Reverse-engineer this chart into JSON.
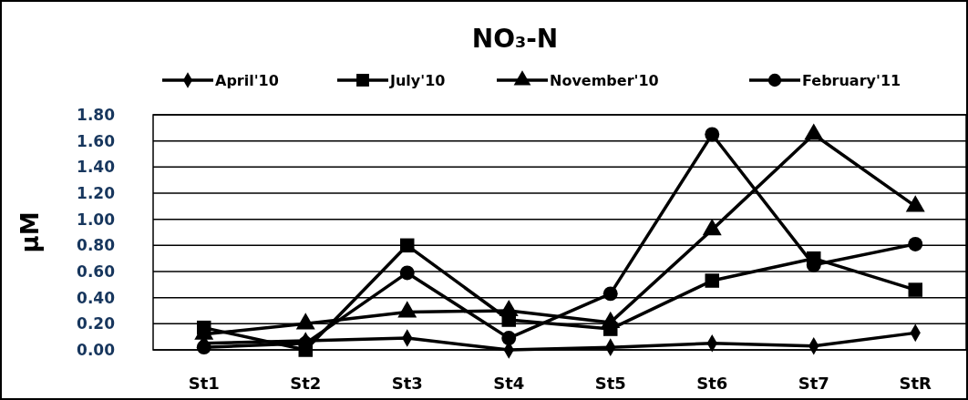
{
  "chart_data": {
    "type": "line",
    "title": "NO₃-N",
    "ylabel": "μM",
    "categories": [
      "St1",
      "St2",
      "St3",
      "St4",
      "St5",
      "St6",
      "St7",
      "StR"
    ],
    "series": [
      {
        "name": "April'10",
        "color": "#000000",
        "marker": "diamond",
        "values": [
          0.05,
          0.07,
          0.09,
          0.0,
          0.02,
          0.05,
          0.03,
          0.13
        ]
      },
      {
        "name": "July'10",
        "color": "#000000",
        "marker": "square",
        "values": [
          0.17,
          0.0,
          0.8,
          0.23,
          0.16,
          0.53,
          0.7,
          0.46
        ]
      },
      {
        "name": "November'10",
        "color": "#000000",
        "marker": "triangle",
        "values": [
          0.12,
          0.2,
          0.29,
          0.3,
          0.21,
          0.92,
          1.65,
          1.1
        ]
      },
      {
        "name": "February'11",
        "color": "#000000",
        "marker": "circle",
        "values": [
          0.02,
          0.05,
          0.59,
          0.09,
          0.43,
          1.65,
          0.65,
          0.81
        ]
      }
    ],
    "ylim": [
      0,
      1.8
    ],
    "yticks": [
      {
        "value": 0,
        "label": "0.00"
      },
      {
        "value": 0.2,
        "label": "0.20"
      },
      {
        "value": 0.4,
        "label": "0.40"
      },
      {
        "value": 0.6,
        "label": "0.60"
      },
      {
        "value": 0.8,
        "label": "0.80"
      },
      {
        "value": 1,
        "label": "1.00"
      },
      {
        "value": 1.2,
        "label": "1.20"
      },
      {
        "value": 1.4,
        "label": "1.40"
      },
      {
        "value": 1.6,
        "label": "1.60"
      },
      {
        "value": 1.8,
        "label": "1.80"
      }
    ],
    "grid": "y",
    "legend": "top",
    "line_style": "solid"
  }
}
